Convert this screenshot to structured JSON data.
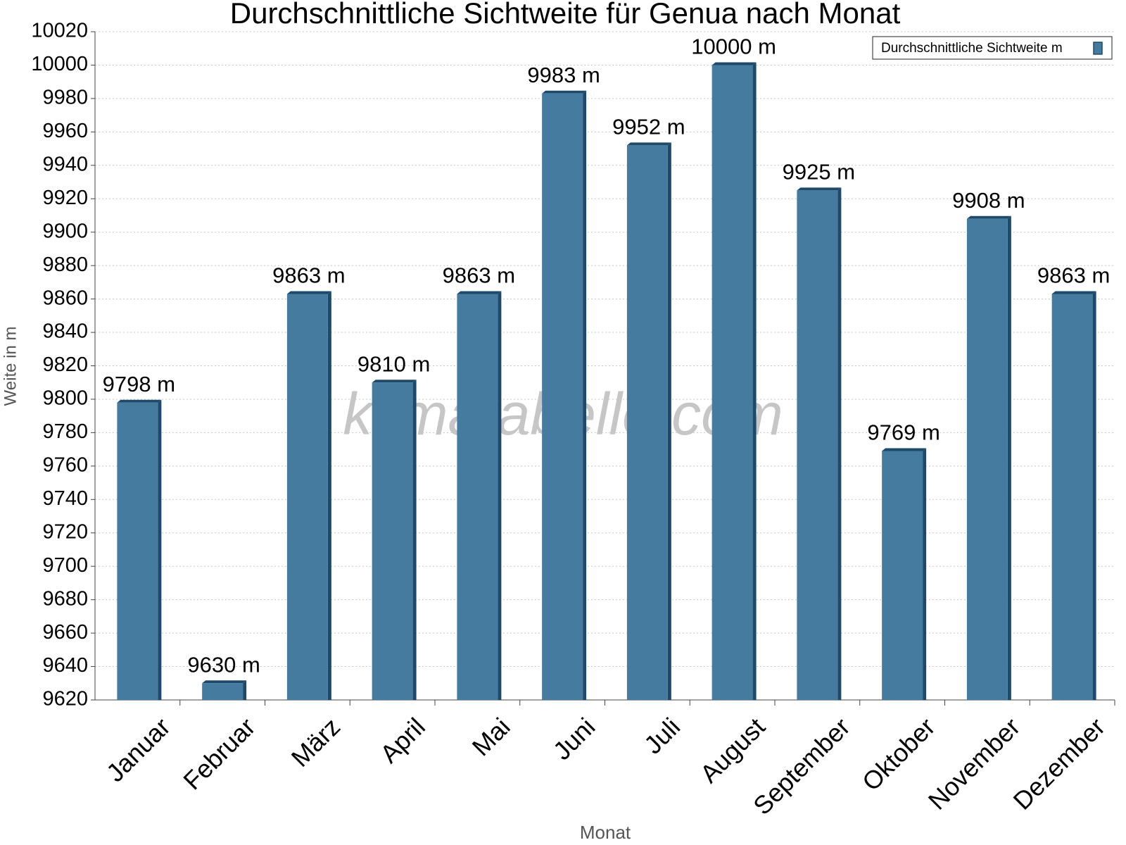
{
  "chart_data": {
    "type": "bar",
    "title": "Durchschnittliche Sichtweite für Genua nach Monat",
    "xlabel": "Monat",
    "ylabel": "Weite in m",
    "watermark": "klimatabelle.com",
    "categories": [
      "Januar",
      "Februar",
      "März",
      "April",
      "Mai",
      "Juni",
      "Juli",
      "August",
      "September",
      "Oktober",
      "November",
      "Dezember"
    ],
    "series": [
      {
        "name": "Durchschnittliche Sichtweite m",
        "color": "#467ba0",
        "values": [
          9798,
          9630,
          9863,
          9810,
          9863,
          9983,
          9952,
          10000,
          9925,
          9769,
          9908,
          9863
        ],
        "value_labels": [
          "9798 m",
          "9630 m",
          "9863 m",
          "9810 m",
          "9863 m",
          "9983 m",
          "9952 m",
          "10000 m",
          "9925 m",
          "9769 m",
          "9908 m",
          "9863 m"
        ]
      }
    ],
    "ylim": [
      9620,
      10020
    ],
    "yticks": [
      9620,
      9640,
      9660,
      9680,
      9700,
      9720,
      9740,
      9760,
      9780,
      9800,
      9820,
      9840,
      9860,
      9880,
      9900,
      9920,
      9940,
      9960,
      9980,
      10000,
      10020
    ],
    "grid": true,
    "legend": "upper right"
  }
}
